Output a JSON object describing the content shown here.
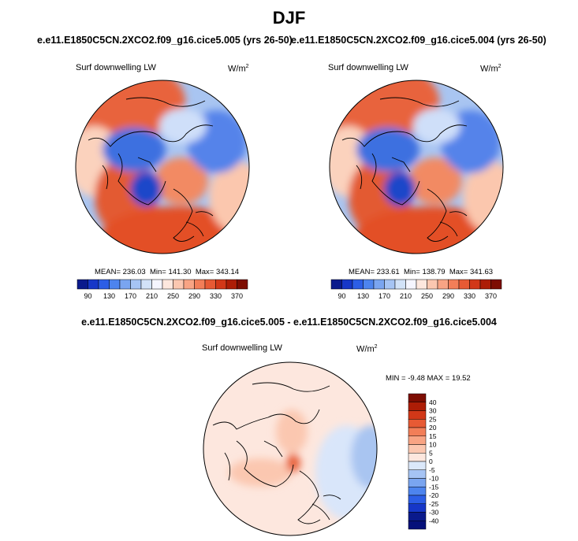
{
  "figure": {
    "title": "DJF",
    "diff_title": "e.e11.E1850C5CN.2XCO2.f09_g16.cice5.005 - e.e11.E1850C5CN.2XCO2.f09_g16.cice5.004"
  },
  "panels": [
    {
      "case_title": "e.e11.E1850C5CN.2XCO2.f09_g16.cice5.005 (yrs 26-50)",
      "variable": "Surf downwelling LW",
      "units_base": "W/m",
      "units_exp": "2",
      "mean_text": "MEAN= 236.03",
      "min_text": "Min= 141.30",
      "max_text": "Max= 343.14"
    },
    {
      "case_title": "e.e11.E1850C5CN.2XCO2.f09_g16.cice5.004 (yrs 26-50)",
      "variable": "Surf downwelling LW",
      "units_base": "W/m",
      "units_exp": "2",
      "mean_text": "MEAN= 233.61",
      "min_text": "Min= 138.79",
      "max_text": "Max= 341.63"
    },
    {
      "variable": "Surf downwelling LW",
      "units_base": "W/m",
      "units_exp": "2",
      "stats_text": "MIN =  -9.48 MAX =  19.52"
    }
  ],
  "chart_data": [
    {
      "type": "heatmap",
      "projection": "north polar stereographic",
      "mean": 236.03,
      "min": 141.3,
      "max": 343.14,
      "colorbar": {
        "orientation": "horizontal",
        "tick_labels": [
          "90",
          "130",
          "170",
          "210",
          "250",
          "290",
          "330",
          "370"
        ],
        "colors": [
          "#0a1a8c",
          "#1637c8",
          "#2c5ee6",
          "#4d84ee",
          "#7aa5f0",
          "#a6c4f4",
          "#d2e2f8",
          "#f5f5ff",
          "#fde7de",
          "#fbc7b0",
          "#f8a484",
          "#f27e58",
          "#e75a34",
          "#d23818",
          "#ad1d06",
          "#7d0d02"
        ]
      }
    },
    {
      "type": "heatmap",
      "projection": "north polar stereographic",
      "mean": 233.61,
      "min": 138.79,
      "max": 341.63,
      "colorbar": {
        "orientation": "horizontal",
        "tick_labels": [
          "90",
          "130",
          "170",
          "210",
          "250",
          "290",
          "330",
          "370"
        ],
        "colors": [
          "#0a1a8c",
          "#1637c8",
          "#2c5ee6",
          "#4d84ee",
          "#7aa5f0",
          "#a6c4f4",
          "#d2e2f8",
          "#f5f5ff",
          "#fde7de",
          "#fbc7b0",
          "#f8a484",
          "#f27e58",
          "#e75a34",
          "#d23818",
          "#ad1d06",
          "#7d0d02"
        ]
      }
    },
    {
      "type": "heatmap",
      "projection": "north polar stereographic",
      "min": -9.48,
      "max": 19.52,
      "colorbar": {
        "orientation": "vertical",
        "tick_labels": [
          "40",
          "30",
          "25",
          "20",
          "15",
          "10",
          "5",
          "0",
          "-5",
          "-10",
          "-15",
          "-20",
          "-25",
          "-30",
          "-40"
        ],
        "colors": [
          "#7d0d02",
          "#ad1d06",
          "#d23818",
          "#e75a34",
          "#f27e58",
          "#f8a484",
          "#fbc7b0",
          "#fde7de",
          "#dbe8fa",
          "#a6c4f4",
          "#7aa5f0",
          "#4d84ee",
          "#2c5ee6",
          "#1637c8",
          "#0a1a8c",
          "#05107a"
        ]
      }
    }
  ]
}
